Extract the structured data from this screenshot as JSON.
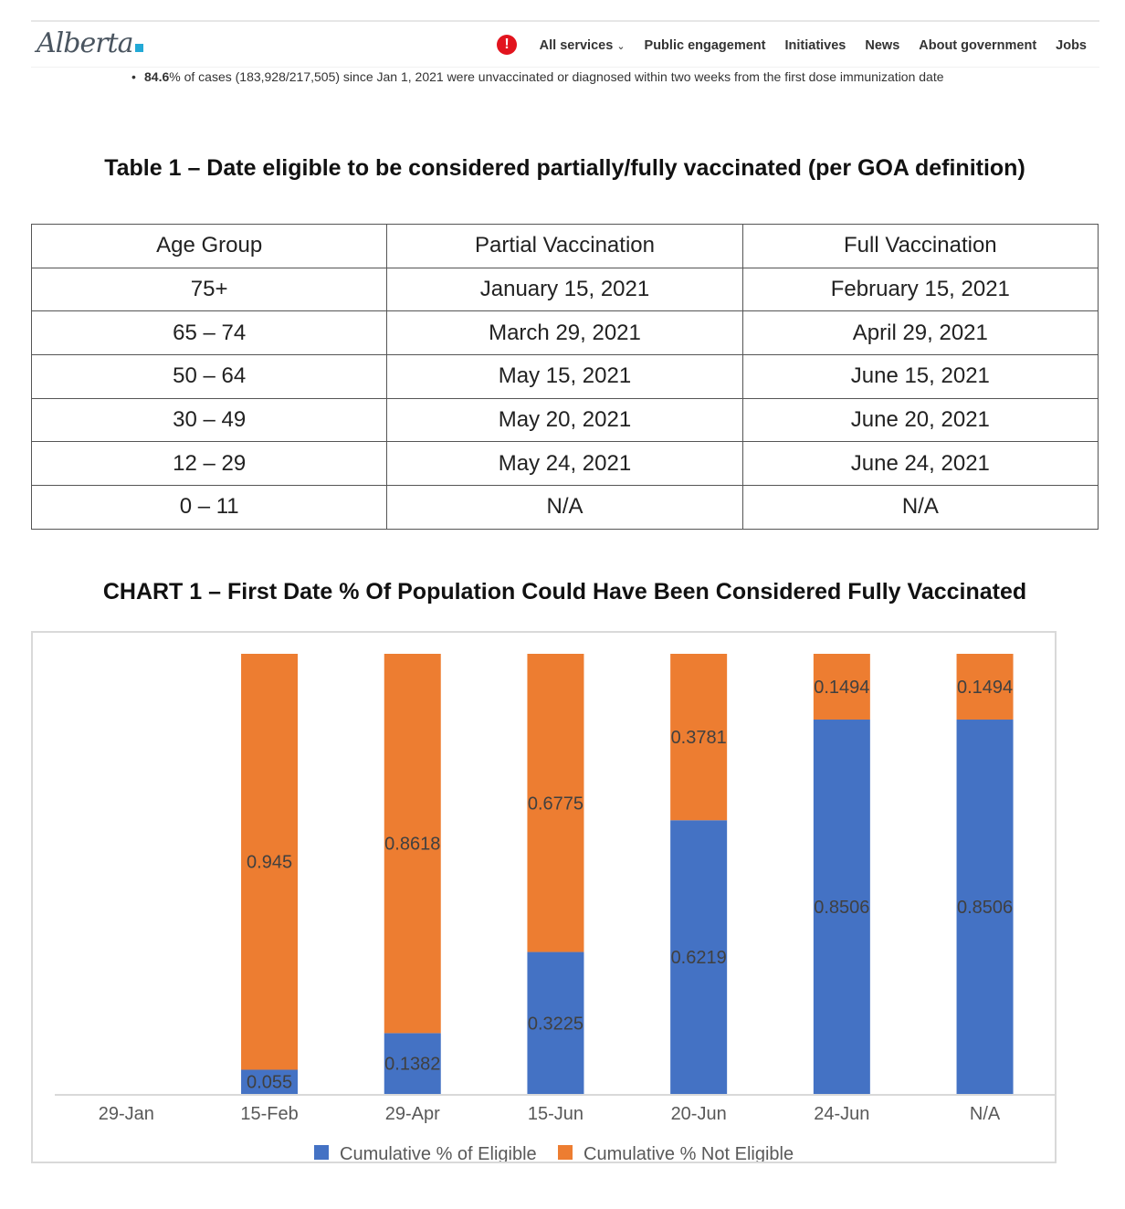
{
  "header": {
    "logo": "Alberta",
    "alert_icon": "exclamation-icon",
    "nav": [
      "All services",
      "Public engagement",
      "Initiatives",
      "News",
      "About government",
      "Jobs"
    ]
  },
  "bullet": {
    "bold": "84.6",
    "text": "% of cases (183,928/217,505) since Jan 1, 2021 were unvaccinated or diagnosed within two weeks from the first dose immunization date"
  },
  "table_title": "Table 1 – Date eligible to be considered partially/fully vaccinated (per GOA definition)",
  "table": {
    "headers": [
      "Age Group",
      "Partial Vaccination",
      "Full Vaccination"
    ],
    "rows": [
      [
        "75+",
        "January 15, 2021",
        "February 15, 2021"
      ],
      [
        "65 – 74",
        "March 29, 2021",
        "April 29, 2021"
      ],
      [
        "50 – 64",
        "May 15, 2021",
        "June 15, 2021"
      ],
      [
        "30 – 49",
        "May 20, 2021",
        "June 20, 2021"
      ],
      [
        "12 – 29",
        "May 24, 2021",
        "June 24, 2021"
      ],
      [
        "0 – 11",
        "N/A",
        "N/A"
      ]
    ]
  },
  "chart_title": "CHART 1 – First Date % Of Population Could Have Been Considered Fully Vaccinated",
  "chart_data": {
    "type": "bar",
    "stacked": true,
    "categories": [
      "29-Jan",
      "15-Feb",
      "29-Apr",
      "15-Jun",
      "20-Jun",
      "24-Jun",
      "N/A"
    ],
    "series": [
      {
        "name": "Cumulative % of Eligible",
        "color": "#4472c4",
        "values": [
          null,
          0.055,
          0.1382,
          0.3225,
          0.6219,
          0.8506,
          0.8506
        ]
      },
      {
        "name": "Cumulative % Not Eligible",
        "color": "#ed7d31",
        "values": [
          null,
          0.945,
          0.8618,
          0.6775,
          0.3781,
          0.1494,
          0.1494
        ]
      }
    ],
    "ylim": [
      0,
      1
    ],
    "grid": false,
    "legend": "bottom"
  }
}
